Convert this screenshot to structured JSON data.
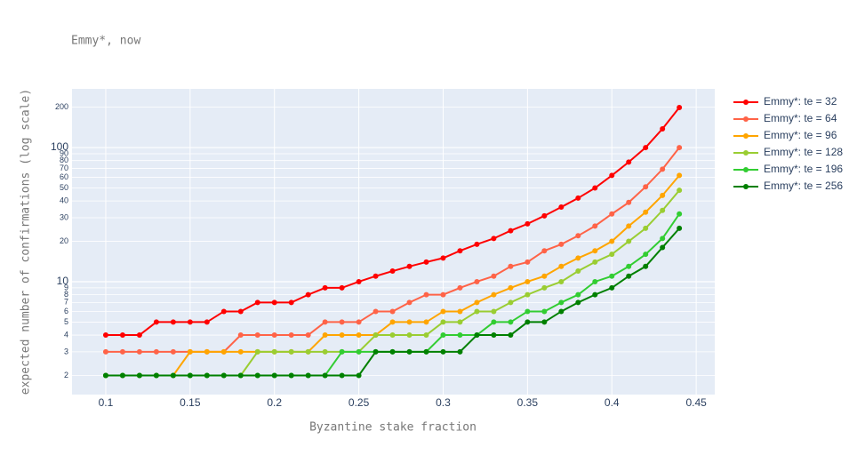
{
  "chart_data": {
    "type": "line",
    "title": "Emmy*, now",
    "x_label": "Byzantine stake fraction",
    "y_label": "expected number of confirmations (log scale)",
    "y_log": true,
    "grid": true,
    "x": [
      0.1,
      0.11,
      0.12,
      0.13,
      0.14,
      0.15,
      0.16,
      0.17,
      0.18,
      0.19,
      0.2,
      0.21,
      0.22,
      0.23,
      0.24,
      0.25,
      0.26,
      0.27,
      0.28,
      0.29,
      0.3,
      0.31,
      0.32,
      0.33,
      0.34,
      0.35,
      0.36,
      0.37,
      0.38,
      0.39,
      0.4,
      0.41,
      0.42,
      0.43,
      0.44
    ],
    "xlim": [
      0.08,
      0.461
    ],
    "xticks": [
      0.1,
      0.15,
      0.2,
      0.25,
      0.3,
      0.35,
      0.4,
      0.45
    ],
    "ylim": [
      1.44,
      274
    ],
    "yticks": [
      2,
      3,
      4,
      5,
      6,
      7,
      8,
      9,
      10,
      20,
      30,
      40,
      50,
      60,
      70,
      80,
      90,
      100,
      200
    ],
    "series": [
      {
        "name": "Emmy*: te = 32",
        "color": "#ff0000",
        "values": [
          4,
          4,
          4,
          5,
          5,
          5,
          5,
          6,
          6,
          7,
          7,
          7,
          8,
          9,
          9,
          10,
          11,
          12,
          13,
          14,
          15,
          17,
          19,
          21,
          24,
          27,
          31,
          36,
          42,
          50,
          62,
          78,
          100,
          138,
          199
        ]
      },
      {
        "name": "Emmy*: te = 64",
        "color": "#ff6347",
        "values": [
          3,
          3,
          3,
          3,
          3,
          3,
          3,
          3,
          4,
          4,
          4,
          4,
          4,
          5,
          5,
          5,
          6,
          6,
          7,
          8,
          8,
          9,
          10,
          11,
          13,
          14,
          17,
          19,
          22,
          26,
          32,
          39,
          51,
          69,
          100
        ]
      },
      {
        "name": "Emmy*: te = 96",
        "color": "#ffa500",
        "values": [
          2,
          2,
          2,
          2,
          2,
          3,
          3,
          3,
          3,
          3,
          3,
          3,
          3,
          4,
          4,
          4,
          4,
          5,
          5,
          5,
          6,
          6,
          7,
          8,
          9,
          10,
          11,
          13,
          15,
          17,
          20,
          26,
          33,
          44,
          62
        ]
      },
      {
        "name": "Emmy*: te = 128",
        "color": "#9acd32",
        "values": [
          2,
          2,
          2,
          2,
          2,
          2,
          2,
          2,
          2,
          3,
          3,
          3,
          3,
          3,
          3,
          3,
          4,
          4,
          4,
          4,
          5,
          5,
          6,
          6,
          7,
          8,
          9,
          10,
          12,
          14,
          16,
          20,
          25,
          34,
          48
        ]
      },
      {
        "name": "Emmy*: te = 196",
        "color": "#32cd32",
        "values": [
          2,
          2,
          2,
          2,
          2,
          2,
          2,
          2,
          2,
          2,
          2,
          2,
          2,
          2,
          3,
          3,
          3,
          3,
          3,
          3,
          4,
          4,
          4,
          5,
          5,
          6,
          6,
          7,
          8,
          10,
          11,
          13,
          16,
          21,
          32
        ]
      },
      {
        "name": "Emmy*: te = 256",
        "color": "#008000",
        "values": [
          2,
          2,
          2,
          2,
          2,
          2,
          2,
          2,
          2,
          2,
          2,
          2,
          2,
          2,
          2,
          2,
          3,
          3,
          3,
          3,
          3,
          3,
          4,
          4,
          4,
          5,
          5,
          6,
          7,
          8,
          9,
          11,
          13,
          18,
          25
        ]
      }
    ]
  }
}
